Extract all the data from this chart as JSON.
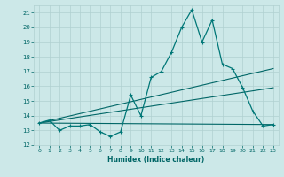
{
  "xlabel": "Humidex (Indice chaleur)",
  "bg_color": "#cce8e8",
  "grid_color": "#b0d0d0",
  "line_color_dark": "#006666",
  "line_color_mid": "#007777",
  "xlim": [
    -0.5,
    23.5
  ],
  "ylim": [
    12,
    21.5
  ],
  "xticks": [
    0,
    1,
    2,
    3,
    4,
    5,
    6,
    7,
    8,
    9,
    10,
    11,
    12,
    13,
    14,
    15,
    16,
    17,
    18,
    19,
    20,
    21,
    22,
    23
  ],
  "yticks": [
    12,
    13,
    14,
    15,
    16,
    17,
    18,
    19,
    20,
    21
  ],
  "series1_x": [
    0,
    1,
    2,
    3,
    4,
    5,
    6,
    7,
    8,
    9,
    10,
    11,
    12,
    13,
    14,
    15,
    16,
    17,
    18,
    19,
    20,
    21,
    22,
    23
  ],
  "series1_y": [
    13.5,
    13.7,
    13.0,
    13.3,
    13.3,
    13.4,
    12.9,
    12.6,
    12.9,
    15.4,
    14.0,
    16.6,
    17.0,
    18.3,
    20.0,
    21.2,
    19.0,
    20.5,
    17.5,
    17.2,
    15.9,
    14.3,
    13.3,
    13.4
  ],
  "series2_x": [
    0,
    23
  ],
  "series2_y": [
    13.5,
    13.4
  ],
  "series3_x": [
    0,
    23
  ],
  "series3_y": [
    13.5,
    15.9
  ],
  "series4_x": [
    0,
    23
  ],
  "series4_y": [
    13.5,
    17.2
  ]
}
